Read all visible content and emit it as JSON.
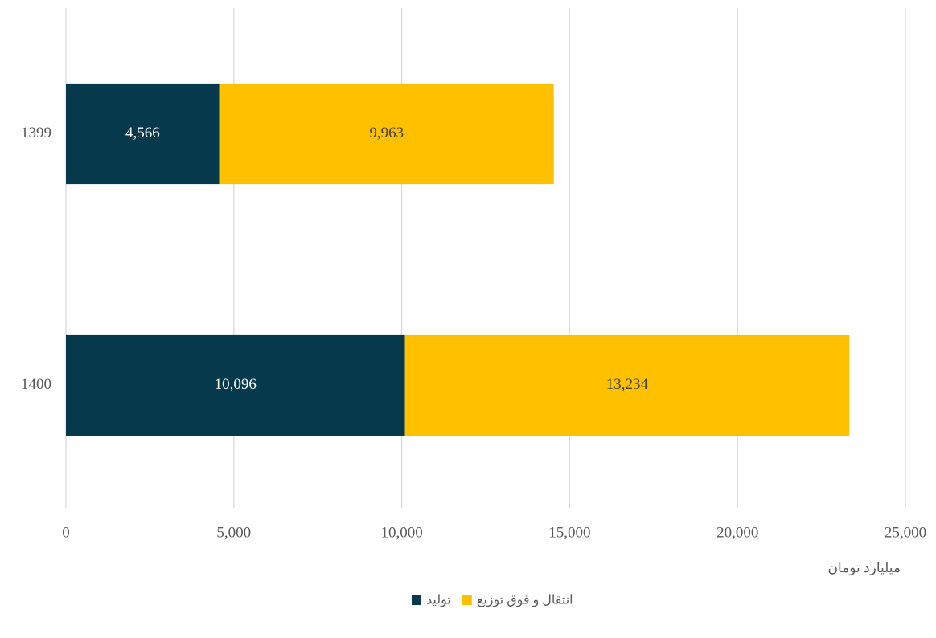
{
  "chart_data": {
    "type": "stacked_bar_horizontal",
    "categories": [
      "1399",
      "1400"
    ],
    "series": [
      {
        "name": "تولید",
        "color": "#06394b",
        "values": [
          4566,
          10096
        ],
        "value_labels": [
          "4,566",
          "10,096"
        ]
      },
      {
        "name": "انتقال و فوق توزیع",
        "color": "#ffc000",
        "values": [
          9963,
          13234
        ],
        "value_labels": [
          "9,963",
          "13,234"
        ]
      }
    ],
    "xlabel": "میلیارد تومان",
    "xlim": [
      0,
      25000
    ],
    "xticks": [
      0,
      {
        "value": 5000,
        "label": "5,000"
      },
      {
        "value": 10000,
        "label": "10,000"
      },
      {
        "value": 15000,
        "label": "15,000"
      },
      {
        "value": 20000,
        "label": "20,000"
      },
      {
        "value": 25000,
        "label": "25,000"
      }
    ],
    "grid": true
  }
}
